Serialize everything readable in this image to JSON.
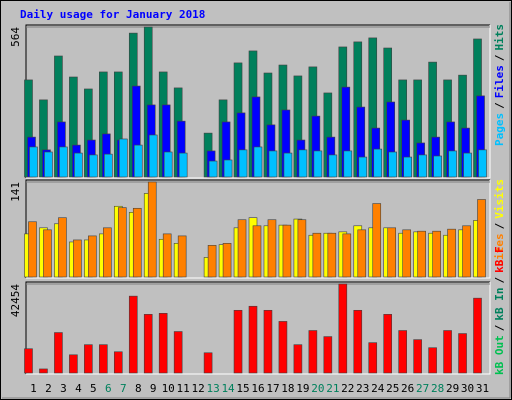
{
  "chart_data": [
    {
      "type": "bar",
      "title": "Daily usage for January 2018",
      "ylim": [
        0,
        564
      ],
      "yticks": [
        564
      ],
      "legend_separator": "/",
      "series": [
        {
          "name": "Hits",
          "color": "#00805c",
          "values": [
            365,
            290,
            455,
            376,
            331,
            395,
            395,
            541,
            564,
            395,
            335,
            0,
            165,
            290,
            429,
            474,
            391,
            421,
            380,
            414,
            316,
            489,
            508,
            523,
            485,
            365,
            365,
            432,
            365,
            383,
            519
          ]
        },
        {
          "name": "Files",
          "color": "#0000ff",
          "values": [
            150,
            102,
            207,
            120,
            139,
            162,
            139,
            342,
            271,
            271,
            210,
            0,
            98,
            207,
            241,
            301,
            196,
            252,
            139,
            229,
            150,
            338,
            263,
            184,
            282,
            214,
            128,
            150,
            207,
            184,
            305
          ]
        },
        {
          "name": "Pages",
          "color": "#00c0ff",
          "values": [
            113,
            94,
            113,
            90,
            83,
            86,
            143,
            120,
            158,
            94,
            90,
            0,
            60,
            64,
            102,
            113,
            98,
            90,
            102,
            98,
            83,
            98,
            75,
            105,
            94,
            75,
            83,
            79,
            98,
            90,
            102
          ]
        }
      ]
    },
    {
      "type": "bar",
      "ylim": [
        0,
        141
      ],
      "yticks": [
        141
      ],
      "legend_separator": "/",
      "series": [
        {
          "name": "Visits",
          "color": "#ffff00",
          "values": [
            64,
            73,
            79,
            52,
            55,
            64,
            105,
            96,
            124,
            56,
            50,
            0,
            29,
            48,
            73,
            88,
            76,
            77,
            86,
            62,
            65,
            67,
            76,
            73,
            73,
            65,
            67,
            65,
            62,
            70,
            84
          ]
        },
        {
          "name": "Sites",
          "color": "#ff8000",
          "values": [
            82,
            70,
            88,
            55,
            61,
            73,
            103,
            102,
            141,
            64,
            61,
            0,
            47,
            50,
            85,
            76,
            85,
            77,
            85,
            65,
            65,
            64,
            70,
            109,
            73,
            70,
            68,
            68,
            71,
            76,
            115
          ]
        }
      ]
    },
    {
      "type": "bar",
      "ylim": [
        0,
        42454
      ],
      "yticks": [
        42454
      ],
      "legend_separator": "/",
      "categories": [
        "1",
        "2",
        "3",
        "4",
        "5",
        "6",
        "7",
        "8",
        "9",
        "10",
        "11",
        "12",
        "13",
        "14",
        "15",
        "16",
        "17",
        "18",
        "19",
        "20",
        "21",
        "22",
        "23",
        "24",
        "25",
        "26",
        "27",
        "28",
        "29",
        "30",
        "31"
      ],
      "category_color": "#000000",
      "weekend_color": "#00805c",
      "weekend_indices": [
        5,
        6,
        12,
        13,
        19,
        20,
        26,
        27
      ],
      "series": [
        {
          "name": "kB F",
          "color": "#ff0000",
          "values": [
            11578,
            1930,
            19297,
            8684,
            13508,
            13508,
            10131,
            36665,
            27982,
            28464,
            19780,
            0,
            9649,
            0,
            29911,
            31841,
            29911,
            24604,
            13508,
            20262,
            17368,
            42454,
            29911,
            14473,
            27982,
            20262,
            15920,
            12061,
            20262,
            18815,
            35700
          ]
        },
        {
          "name": "kB In",
          "color": "#00805c",
          "values": [
            null,
            null,
            null,
            null,
            null,
            null,
            null,
            null,
            null,
            null,
            null,
            null,
            null,
            null,
            null,
            null,
            null,
            null,
            null,
            null,
            null,
            null,
            null,
            null,
            null,
            null,
            null,
            null,
            null,
            null,
            null
          ]
        },
        {
          "name": "kB Out",
          "color": "#00c050",
          "values": [
            null,
            null,
            null,
            null,
            null,
            null,
            null,
            null,
            null,
            null,
            null,
            null,
            null,
            null,
            null,
            null,
            null,
            null,
            null,
            null,
            null,
            null,
            null,
            null,
            null,
            null,
            null,
            null,
            null,
            null,
            null
          ]
        }
      ]
    }
  ]
}
